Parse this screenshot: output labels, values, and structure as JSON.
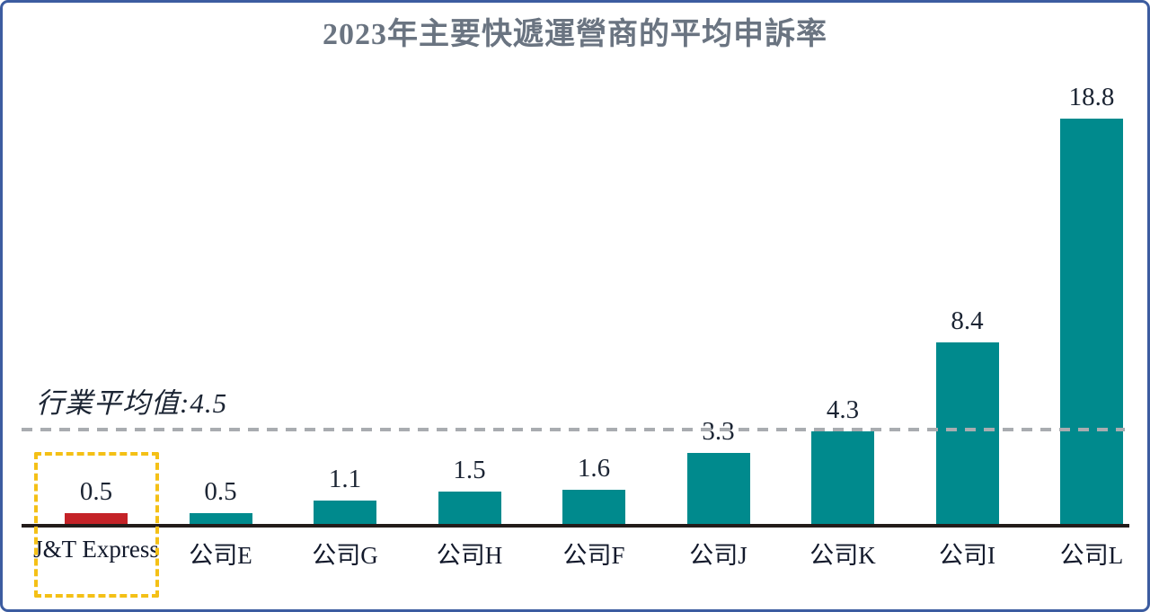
{
  "title": "2023年主要快遞運營商的平均申訴率",
  "average_line": {
    "label": "行業平均值:4.5",
    "value": 4.5
  },
  "chart_data": {
    "type": "bar",
    "title": "2023年主要快遞運營商的平均申訴率",
    "categories": [
      "J&T Express",
      "公司E",
      "公司G",
      "公司H",
      "公司F",
      "公司J",
      "公司K",
      "公司I",
      "公司L"
    ],
    "values": [
      0.5,
      0.5,
      1.1,
      1.5,
      1.6,
      3.3,
      4.3,
      8.4,
      18.8
    ],
    "value_labels": [
      "0.5",
      "0.5",
      "1.1",
      "1.5",
      "1.6",
      "3.3",
      "4.3",
      "8.4",
      "18.8"
    ],
    "xlabel": "",
    "ylabel": "",
    "ylim": [
      0,
      20
    ],
    "grid": false,
    "legend": false,
    "average_reference": 4.5,
    "average_reference_label": "行業平均值:4.5",
    "highlight_index": 0
  },
  "colors": {
    "bar_default": "#008A8D",
    "bar_highlight": "#C42227",
    "highlight_box": "#F4C016",
    "average_line": "#A9ACB0",
    "axis": "#231C1A",
    "title_text": "#6A7481",
    "value_text": "#1B2433",
    "category_text": "#12192B",
    "frame_border": "#3C5CA0",
    "background": "#FFFFFF"
  }
}
